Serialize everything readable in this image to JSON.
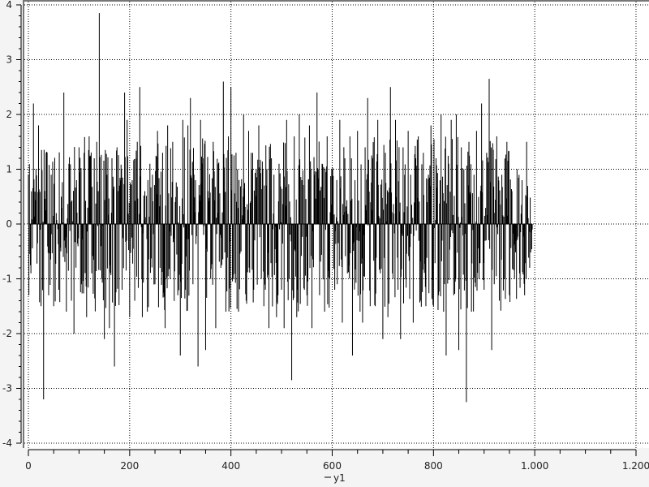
{
  "chart_data": {
    "type": "impulse",
    "title": "",
    "legend": {
      "entries": [
        "y1"
      ],
      "placement": "bottom"
    },
    "x_start": 0,
    "x_step": 5,
    "xlim": [
      0,
      1200
    ],
    "ylim": [
      -4,
      4
    ],
    "grid": true,
    "x_ticks": [
      0,
      200,
      400,
      600,
      800,
      1000,
      1200
    ],
    "x_tick_labels": [
      "0",
      "200",
      "400",
      "600",
      "800",
      "1.000",
      "1.200"
    ],
    "y_ticks": [
      -4,
      -3,
      -2,
      -1,
      0,
      1,
      2,
      3,
      4
    ],
    "y_tick_labels": [
      "-4",
      "-3",
      "-2",
      "-1",
      "0",
      "1",
      "2",
      "3",
      "4"
    ],
    "colors": {
      "series": "#000000",
      "grid": "#000000",
      "plot_bg": "#ffffff",
      "frame": "#777777"
    },
    "series": [
      {
        "name": "y1",
        "values": [
          0.9,
          -0.9,
          2.2,
          1.0,
          1.8,
          -1.5,
          -3.2,
          1.3,
          -1.3,
          0.9,
          -1.5,
          0.2,
          -1.2,
          0.5,
          2.4,
          -1.6,
          1.1,
          -1.4,
          -2.0,
          0.8,
          1.4,
          -1.1,
          1.3,
          -1.7,
          1.6,
          -0.9,
          1.2,
          1.5,
          3.85,
          -1.0,
          -2.1,
          0.9,
          -1.9,
          1.2,
          -2.6,
          1.4,
          0.7,
          -1.2,
          2.4,
          1.9,
          -1.7,
          0.8,
          -1.4,
          1.5,
          2.5,
          -1.7,
          0.6,
          -1.6,
          1.1,
          0.9,
          -1.1,
          1.7,
          -0.8,
          1.3,
          -1.9,
          1.8,
          -1.0,
          1.5,
          0.4,
          -1.3,
          -2.4,
          1.9,
          -1.2,
          1.8,
          2.3,
          -1.1,
          0.8,
          -2.6,
          1.9,
          1.2,
          -2.3,
          0.6,
          -1.0,
          1.5,
          -1.9,
          1.1,
          -0.8,
          2.6,
          -1.6,
          1.6,
          2.5,
          -1.0,
          1.3,
          -1.6,
          -0.5,
          2.0,
          -1.4,
          1.7,
          1.3,
          -1.2,
          1.0,
          1.8,
          -1.0,
          -1.5,
          0.7,
          -1.9,
          1.2,
          0.9,
          -1.7,
          1.1,
          -1.2,
          -1.9,
          1.9,
          -1.0,
          -2.85,
          1.6,
          -1.7,
          2.0,
          0.8,
          -1.2,
          -1.3,
          1.8,
          -1.9,
          0.9,
          2.4,
          -1.3,
          1.1,
          -1.6,
          1.6,
          -1.0,
          1.0,
          -1.2,
          -1.1,
          1.9,
          -1.8,
          1.2,
          -0.9,
          1.6,
          -2.4,
          0.8,
          1.7,
          -1.6,
          -1.8,
          1.4,
          2.3,
          -1.5,
          1.2,
          -1.5,
          1.9,
          -0.9,
          -2.1,
          1.3,
          -1.7,
          2.5,
          -1.0,
          1.9,
          -1.2,
          -2.1,
          1.4,
          -1.0,
          1.7,
          0.9,
          -1.8,
          1.2,
          1.6,
          -1.4,
          1.3,
          -1.5,
          0.9,
          1.8,
          -1.5,
          1.2,
          -1.3,
          2.0,
          -1.6,
          -2.4,
          1.1,
          1.9,
          -1.3,
          2.0,
          -2.3,
          1.4,
          1.0,
          -3.25,
          1.5,
          -1.6,
          0.9,
          1.7,
          -1.0,
          2.2,
          -1.2,
          1.3,
          2.65,
          -2.3,
          -1.1,
          1.6,
          -1.4,
          0.9,
          -1.0,
          1.5,
          -1.3,
          0.6,
          -1.0,
          1.0,
          -0.9,
          0.8,
          -1.3,
          0.5,
          -0.8,
          -0.1
        ]
      }
    ]
  }
}
